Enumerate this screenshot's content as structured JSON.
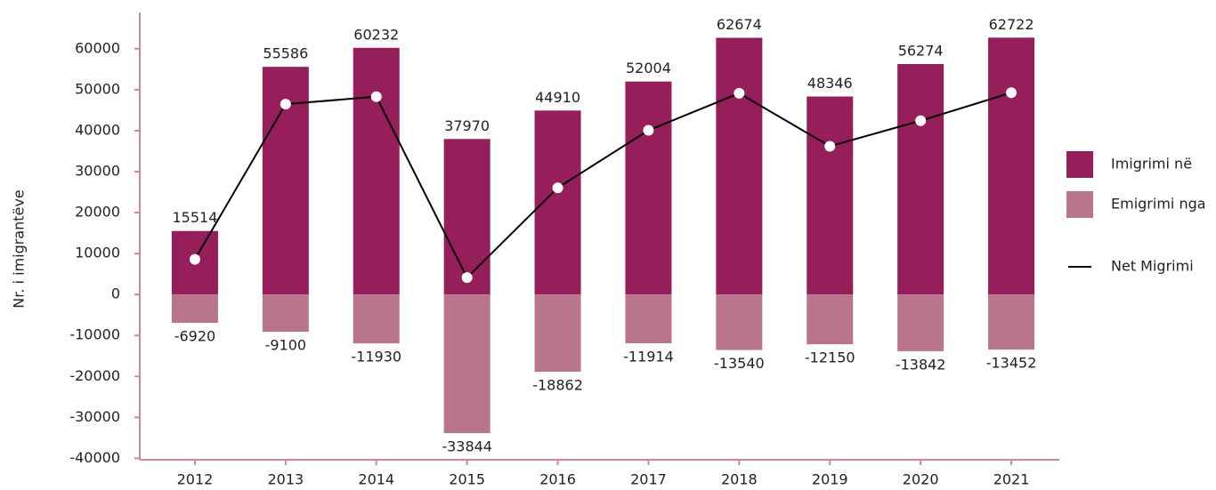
{
  "chart_data": {
    "type": "bar",
    "y_label": "Nr. i imigrantëve",
    "categories": [
      "2012",
      "2013",
      "2014",
      "2015",
      "2016",
      "2017",
      "2018",
      "2019",
      "2020",
      "2021"
    ],
    "series": [
      {
        "name": "Imigrimi në",
        "type": "bar",
        "color": "#961e5a",
        "values": [
          15514,
          55586,
          60232,
          37970,
          44910,
          52004,
          62674,
          48346,
          56274,
          62722
        ]
      },
      {
        "name": "Emigrimi nga",
        "type": "bar",
        "color": "#b8758c",
        "values": [
          -6920,
          -9100,
          -11930,
          -33844,
          -18862,
          -11914,
          -13540,
          -12150,
          -13842,
          -13452
        ]
      },
      {
        "name": "Net Migrimi",
        "type": "line",
        "color": "#000000",
        "values": [
          8594,
          46486,
          48302,
          4126,
          26048,
          40090,
          49134,
          36196,
          42432,
          49270
        ]
      }
    ],
    "ylim": [
      -41000,
      68000
    ],
    "yticks": [
      -40000,
      -30000,
      -20000,
      -10000,
      0,
      10000,
      20000,
      30000,
      40000,
      50000,
      60000
    ],
    "legend": "right"
  }
}
